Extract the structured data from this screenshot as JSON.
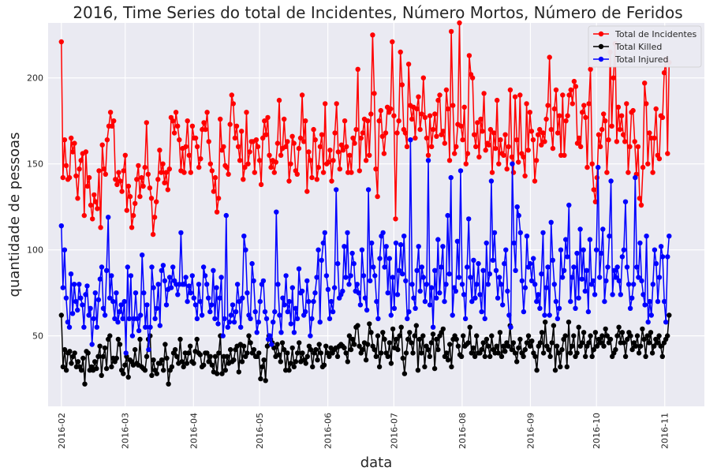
{
  "chart_data": {
    "type": "line",
    "title": "2016, Time Series do total de Incidentes, Número Mortos, Número de Feridos",
    "xlabel": "data",
    "ylabel": "quantidade de pessoas",
    "x_ticks": [
      "2016-02",
      "2016-03",
      "2016-04",
      "2016-05",
      "2016-06",
      "2016-07",
      "2016-08",
      "2016-09",
      "2016-10",
      "2016-11"
    ],
    "y_ticks": [
      50,
      100,
      150,
      200
    ],
    "xlim": [
      "2016-01-26",
      "2016-11-19"
    ],
    "ylim": [
      9,
      232
    ],
    "grid": true,
    "legend": "top-right",
    "background": "#EAEAF2",
    "x_start": "2016-02-01",
    "x_end": "2016-11-03",
    "series": [
      {
        "name": "Total de Incidentes",
        "color": "#FF0000",
        "values": [
          221,
          142,
          164,
          149,
          141,
          142,
          165,
          157,
          162,
          143,
          130,
          147,
          152,
          156,
          120,
          157,
          137,
          142,
          126,
          118,
          132,
          128,
          124,
          146,
          113,
          161,
          147,
          144,
          164,
          172,
          180,
          172,
          175,
          141,
          138,
          145,
          140,
          134,
          146,
          155,
          123,
          137,
          131,
          113,
          120,
          127,
          141,
          149,
          131,
          142,
          137,
          148,
          174,
          144,
          136,
          130,
          109,
          119,
          128,
          141,
          158,
          145,
          150,
          139,
          145,
          135,
          147,
          177,
          175,
          168,
          180,
          172,
          164,
          146,
          159,
          145,
          160,
          175,
          155,
          145,
          172,
          165,
          165,
          160,
          148,
          153,
          170,
          174,
          170,
          180,
          163,
          150,
          146,
          134,
          142,
          122,
          130,
          176,
          158,
          160,
          149,
          148,
          144,
          173,
          190,
          185,
          165,
          172,
          160,
          152,
          169,
          141,
          148,
          180,
          150,
          157,
          163,
          163,
          145,
          164,
          160,
          152,
          138,
          165,
          175,
          167,
          177,
          155,
          148,
          152,
          145,
          151,
          162,
          187,
          155,
          159,
          176,
          160,
          163,
          140,
          150,
          166,
          162,
          146,
          144,
          159,
          165,
          190,
          163,
          175,
          134,
          157,
          152,
          142,
          170,
          164,
          141,
          148,
          160,
          167,
          145,
          185,
          150,
          151,
          158,
          140,
          152,
          168,
          185,
          157,
          147,
          161,
          158,
          175,
          160,
          145,
          155,
          145,
          165,
          162,
          170,
          205,
          146,
          165,
          168,
          176,
          152,
          175,
          155,
          179,
          225,
          191,
          147,
          131,
          175,
          181,
          166,
          156,
          168,
          183,
          180,
          182,
          221,
          178,
          118,
          168,
          175,
          215,
          196,
          170,
          168,
          160,
          208,
          184,
          176,
          183,
          165,
          182,
          189,
          170,
          179,
          200,
          177,
          165,
          155,
          178,
          160,
          170,
          179,
          166,
          187,
          190,
          167,
          169,
          162,
          193,
          182,
          152,
          227,
          184,
          156,
          160,
          173,
          232,
          172,
          164,
          183,
          150,
          156,
          213,
          202,
          200,
          167,
          160,
          174,
          154,
          176,
          169,
          191,
          158,
          162,
          161,
          170,
          145,
          168,
          159,
          187,
          150,
          164,
          156,
          155,
          167,
          147,
          160,
          193,
          154,
          145,
          189,
          164,
          151,
          190,
          156,
          154,
          143,
          185,
          158,
          180,
          169,
          164,
          140,
          152,
          167,
          170,
          161,
          168,
          163,
          176,
          184,
          212,
          170,
          159,
          182,
          193,
          168,
          178,
          155,
          190,
          155,
          175,
          178,
          190,
          193,
          185,
          198,
          195,
          162,
          165,
          160,
          180,
          184,
          177,
          148,
          185,
          205,
          150,
          135,
          128,
          142,
          167,
          160,
          170,
          179,
          175,
          145,
          164,
          215,
          172,
          200,
          220,
          163,
          183,
          170,
          178,
          167,
          163,
          185,
          145,
          160,
          180,
          181,
          163,
          144,
          160,
          130,
          126,
          148,
          197,
          185,
          150,
          168,
          165,
          145,
          165,
          182,
          155,
          153,
          178,
          177,
          203,
          211,
          156,
          209
        ]
      },
      {
        "name": "Total Killed",
        "color": "#000000",
        "values": [
          62,
          32,
          42,
          30,
          40,
          41,
          34,
          38,
          40,
          32,
          35,
          32,
          30,
          37,
          22,
          41,
          40,
          30,
          32,
          30,
          35,
          31,
          38,
          44,
          27,
          38,
          43,
          31,
          48,
          50,
          32,
          37,
          35,
          37,
          48,
          45,
          30,
          28,
          33,
          38,
          26,
          36,
          35,
          33,
          42,
          34,
          33,
          48,
          32,
          31,
          30,
          38,
          48,
          50,
          27,
          36,
          30,
          28,
          34,
          34,
          36,
          30,
          45,
          37,
          22,
          30,
          32,
          40,
          42,
          38,
          34,
          48,
          35,
          32,
          40,
          34,
          40,
          44,
          35,
          34,
          41,
          48,
          40,
          39,
          32,
          33,
          40,
          40,
          35,
          38,
          33,
          29,
          38,
          28,
          40,
          50,
          28,
          38,
          30,
          38,
          34,
          42,
          35,
          36,
          42,
          44,
          29,
          45,
          35,
          44,
          38,
          40,
          50,
          46,
          40,
          42,
          38,
          38,
          40,
          25,
          32,
          36,
          24,
          44,
          50,
          48,
          46,
          43,
          38,
          45,
          39,
          35,
          46,
          42,
          30,
          40,
          30,
          34,
          43,
          32,
          35,
          40,
          46,
          35,
          40,
          36,
          34,
          38,
          44,
          42,
          32,
          40,
          42,
          36,
          45,
          40,
          32,
          33,
          44,
          40,
          38,
          43,
          40,
          42,
          43,
          38,
          44,
          45,
          44,
          43,
          40,
          35,
          50,
          42,
          48,
          45,
          55,
          56,
          44,
          40,
          42,
          46,
          36,
          45,
          57,
          52,
          44,
          42,
          38,
          50,
          32,
          40,
          52,
          48,
          40,
          38,
          46,
          34,
          54,
          43,
          48,
          42,
          50,
          55,
          37,
          28,
          40,
          48,
          52,
          46,
          40,
          50,
          56,
          30,
          48,
          40,
          50,
          32,
          44,
          42,
          38,
          46,
          51,
          31,
          48,
          42,
          50,
          52,
          54,
          38,
          40,
          36,
          45,
          32,
          48,
          50,
          48,
          44,
          39,
          38,
          50,
          44,
          45,
          46,
          55,
          40,
          43,
          38,
          50,
          40,
          40,
          42,
          46,
          38,
          48,
          44,
          38,
          50,
          42,
          40,
          44,
          40,
          52,
          38,
          44,
          41,
          46,
          44,
          56,
          42,
          46,
          40,
          35,
          43,
          48,
          40,
          38,
          42,
          46,
          50,
          44,
          47,
          40,
          38,
          30,
          44,
          46,
          52,
          40,
          58,
          44,
          42,
          38,
          46,
          56,
          30,
          44,
          40,
          32,
          42,
          48,
          50,
          32,
          58,
          40,
          44,
          50,
          38,
          40,
          55,
          44,
          46,
          52,
          38,
          44,
          46,
          50,
          38,
          42,
          52,
          44,
          48,
          46,
          50,
          44,
          54,
          50,
          46,
          48,
          38,
          40,
          42,
          50,
          55,
          46,
          52,
          46,
          38,
          48,
          52,
          50,
          42,
          46,
          44,
          50,
          40,
          44,
          54,
          48,
          38,
          50,
          46,
          52,
          40,
          44,
          48,
          46,
          50,
          44,
          38,
          46,
          48,
          50,
          62
        ]
      },
      {
        "name": "Total Injured",
        "color": "#0000FF",
        "values": [
          114,
          78,
          100,
          72,
          58,
          55,
          86,
          63,
          80,
          70,
          65,
          80,
          72,
          68,
          55,
          74,
          79,
          62,
          66,
          45,
          60,
          75,
          55,
          71,
          83,
          90,
          66,
          62,
          88,
          119,
          72,
          85,
          70,
          60,
          75,
          58,
          64,
          68,
          60,
          70,
          40,
          90,
          60,
          85,
          50,
          60,
          75,
          60,
          53,
          62,
          97,
          75,
          55,
          68,
          42,
          55,
          90,
          78,
          60,
          66,
          80,
          56,
          88,
          91,
          82,
          68,
          77,
          84,
          78,
          90,
          82,
          80,
          74,
          80,
          110,
          80,
          80,
          84,
          70,
          79,
          75,
          85,
          72,
          68,
          60,
          80,
          70,
          62,
          90,
          85,
          80,
          72,
          64,
          68,
          88,
          60,
          78,
          57,
          72,
          84,
          50,
          60,
          120,
          55,
          58,
          62,
          68,
          58,
          64,
          80,
          70,
          55,
          72,
          108,
          100,
          75,
          62,
          60,
          92,
          82,
          64,
          52,
          58,
          70,
          80,
          82,
          64,
          60,
          48,
          50,
          45,
          58,
          64,
          122,
          80,
          62,
          52,
          72,
          68,
          85,
          64,
          70,
          57,
          78,
          52,
          66,
          60,
          89,
          75,
          76,
          62,
          64,
          82,
          70,
          50,
          60,
          70,
          75,
          84,
          100,
          58,
          94,
          104,
          110,
          85,
          77,
          60,
          70,
          64,
          78,
          135,
          92,
          72,
          74,
          76,
          102,
          84,
          110,
          80,
          85,
          98,
          92,
          76,
          80,
          75,
          68,
          100,
          85,
          72,
          65,
          135,
          82,
          104,
          90,
          85,
          70,
          60,
          95,
          108,
          110,
          90,
          102,
          75,
          95,
          62,
          84,
          66,
          104,
          74,
          88,
          103,
          86,
          108,
          82,
          60,
          64,
          164,
          80,
          72,
          66,
          88,
          102,
          76,
          90,
          84,
          70,
          80,
          152,
          68,
          78,
          55,
          88,
          72,
          106,
          75,
          90,
          102,
          70,
          80,
          120,
          86,
          142,
          62,
          78,
          76,
          105,
          84,
          146,
          80,
          74,
          60,
          90,
          118,
          84,
          70,
          94,
          72,
          80,
          92,
          74,
          64,
          88,
          60,
          104,
          80,
          86,
          140,
          94,
          110,
          88,
          72,
          84,
          80,
          68,
          92,
          100,
          76,
          62,
          55,
          150,
          104,
          88,
          125,
          120,
          110,
          82,
          64,
          78,
          108,
          90,
          92,
          82,
          95,
          80,
          70,
          74,
          66,
          86,
          110,
          62,
          78,
          90,
          62,
          116,
          94,
          80,
          70,
          60,
          66,
          100,
          84,
          88,
          106,
          96,
          126,
          70,
          84,
          90,
          66,
          98,
          72,
          112,
          83,
          100,
          76,
          88,
          64,
          106,
          80,
          82,
          74,
          100,
          148,
          84,
          98,
          112,
          70,
          82,
          90,
          108,
          140,
          74,
          88,
          84,
          90,
          82,
          74,
          96,
          100,
          128,
          90,
          80,
          66,
          72,
          80,
          142,
          90,
          84,
          104,
          82,
          74,
          68,
          108,
          58,
          70,
          62,
          80,
          100,
          92,
          70,
          84,
          102,
          96,
          70,
          58,
          96,
          108
        ]
      }
    ]
  }
}
